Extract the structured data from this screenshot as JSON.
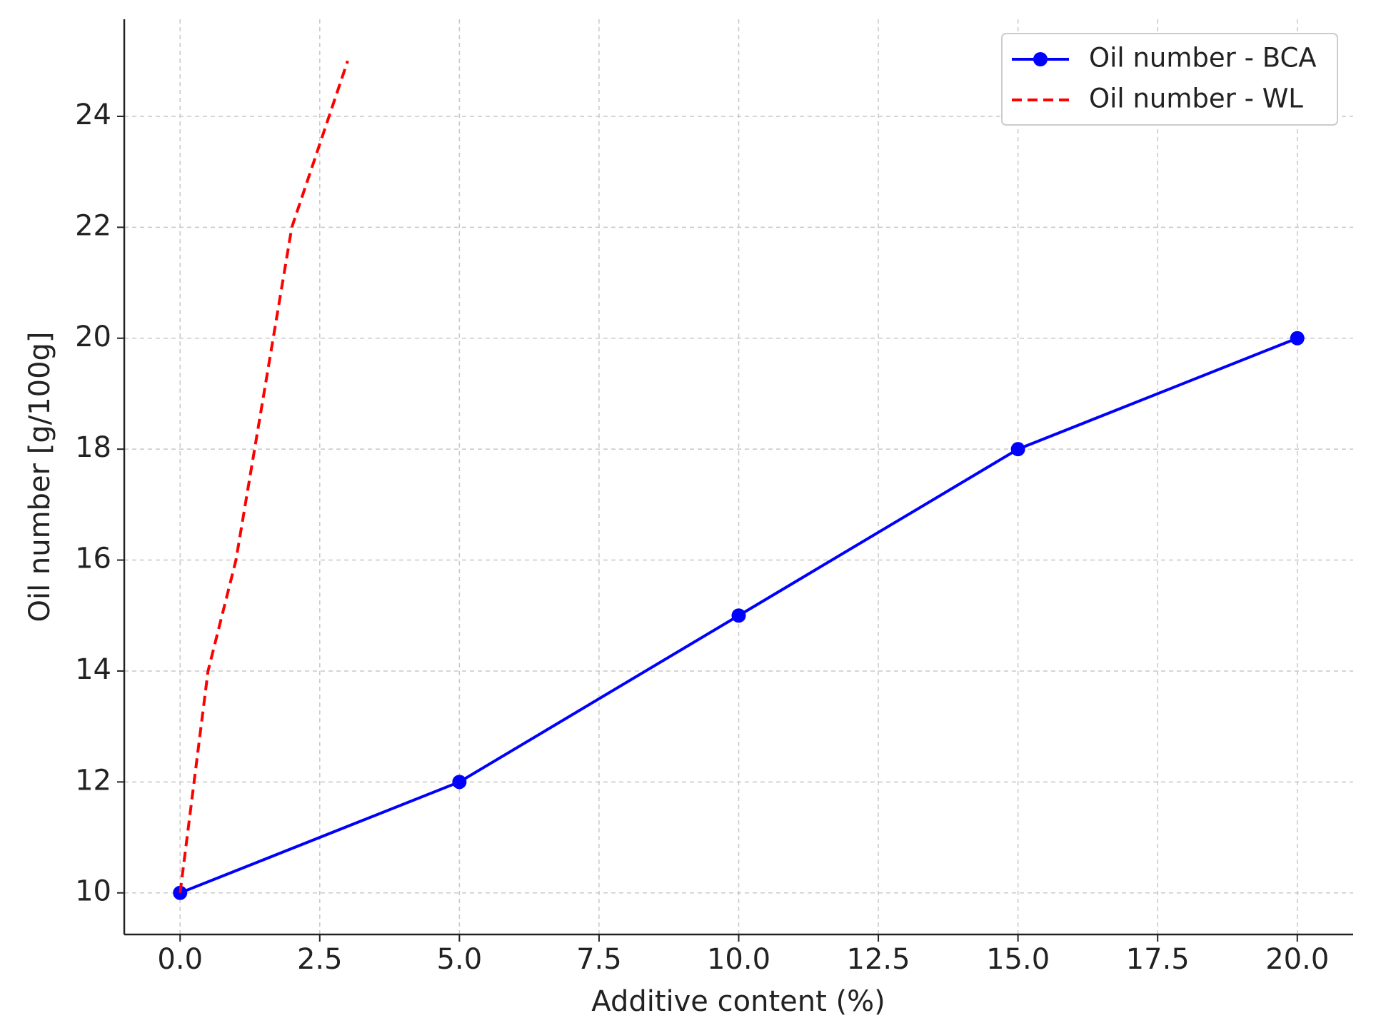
{
  "chart_data": {
    "type": "line",
    "xlabel": "Additive content (%)",
    "ylabel": "Oil number [g/100g]",
    "series": [
      {
        "name": "Oil number - BCA",
        "color": "#0000ff",
        "style": "solid",
        "marker": "circle",
        "x": [
          0,
          5,
          10,
          15,
          20
        ],
        "values": [
          10,
          12,
          15,
          18,
          20
        ]
      },
      {
        "name": "Oil number - WL",
        "color": "#ff0000",
        "style": "dashed",
        "x": [
          0,
          0.5,
          1,
          1.5,
          2,
          2.5,
          3
        ],
        "values": [
          10,
          14,
          16,
          19,
          22,
          23.5,
          25
        ]
      }
    ],
    "xlim": [
      -1,
      21
    ],
    "xticks": [
      {
        "value": 0,
        "label": "0.0"
      },
      {
        "value": 2.5,
        "label": "2.5"
      },
      {
        "value": 5,
        "label": "5.0"
      },
      {
        "value": 7.5,
        "label": "7.5"
      },
      {
        "value": 10,
        "label": "10.0"
      },
      {
        "value": 12.5,
        "label": "12.5"
      },
      {
        "value": 15,
        "label": "15.0"
      },
      {
        "value": 17.5,
        "label": "17.5"
      },
      {
        "value": 20,
        "label": "20.0"
      }
    ],
    "ylim": [
      9.25,
      25.75
    ],
    "yticks": [
      10,
      12,
      14,
      16,
      18,
      20,
      22,
      24
    ],
    "grid": true,
    "legend": "upper right"
  }
}
